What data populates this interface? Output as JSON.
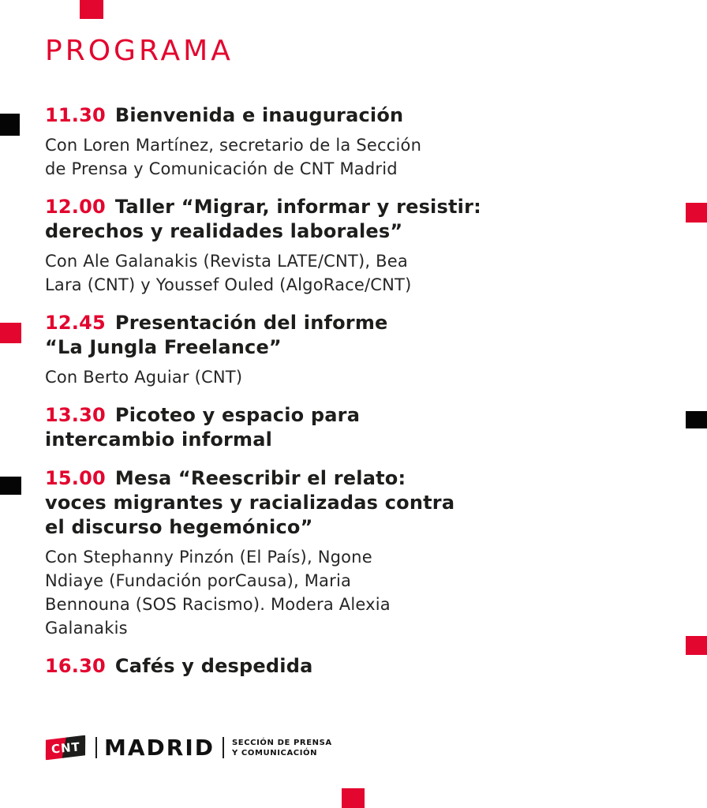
{
  "colors": {
    "accent": "#e3062f",
    "ink": "#1d1d1b",
    "square-black": "#050505"
  },
  "page": {
    "title": "PROGRAMA"
  },
  "schedule": [
    {
      "time": "11.30",
      "title_lines": [
        "Bienvenida e inauguración"
      ],
      "detail_lines": [
        "Con Loren Martínez, secretario de la Sección",
        "de Prensa y Comunicación de CNT Madrid"
      ]
    },
    {
      "time": "12.00",
      "title_lines": [
        "Taller “Migrar, informar y resistir:",
        "derechos y realidades laborales”"
      ],
      "detail_lines": [
        "Con Ale Galanakis (Revista LATE/CNT), Bea",
        "Lara (CNT) y Youssef Ouled (AlgoRace/CNT)"
      ]
    },
    {
      "time": "12.45",
      "title_lines": [
        "Presentación del informe",
        "“La Jungla Freelance”"
      ],
      "detail_lines": [
        "Con Berto Aguiar (CNT)"
      ]
    },
    {
      "time": "13.30",
      "title_lines": [
        "Picoteo y espacio para",
        "intercambio informal"
      ],
      "detail_lines": []
    },
    {
      "time": "15.00",
      "title_lines": [
        "Mesa “Reescribir el relato:",
        "voces migrantes y racializadas contra",
        "el discurso hegemónico”"
      ],
      "detail_lines": [
        "Con Stephanny Pinzón (El País), Ngone",
        "Ndiaye (Fundación porCausa), Maria",
        "Bennouna (SOS Racismo). Modera Alexia",
        "Galanakis"
      ]
    },
    {
      "time": "16.30",
      "title_lines": [
        "Cafés y despedida"
      ],
      "detail_lines": []
    }
  ],
  "footer": {
    "logo_text": "CNT",
    "city": "MADRID",
    "section_lines": [
      "SECCIÓN DE PRENSA",
      "Y COMUNICACIÓN"
    ]
  }
}
